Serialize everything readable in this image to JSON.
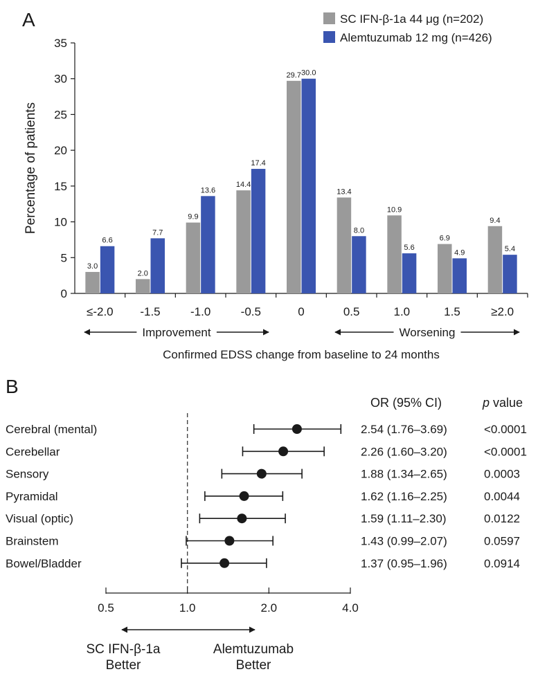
{
  "colors": {
    "sc_ifn": "#9a9a9a",
    "alemtuzumab": "#3a55b0",
    "ink": "#1a1a1a"
  },
  "panel_a": {
    "letter": "A"
  },
  "panel_b": {
    "letter": "B"
  },
  "chart_data": [
    {
      "type": "bar",
      "panel": "A",
      "ylabel": "Percentage of patients",
      "xlabel": "Confirmed EDSS change from baseline to 24 months",
      "ylim": [
        0,
        35
      ],
      "yticks": [
        0,
        5,
        10,
        15,
        20,
        25,
        30,
        35
      ],
      "grid": false,
      "legend_position": "top-right",
      "categories": [
        "≤-2.0",
        "-1.5",
        "-1.0",
        "-0.5",
        "0",
        "0.5",
        "1.0",
        "1.5",
        "≥2.0"
      ],
      "series": [
        {
          "name": "SC IFN-β-1a 44 μg (n=202)",
          "color": "#9a9a9a",
          "values": [
            3.0,
            2.0,
            9.9,
            14.4,
            29.7,
            13.4,
            10.9,
            6.9,
            9.4
          ],
          "labels": [
            "3.0",
            "2.0",
            "9.9",
            "14.4",
            "29.7",
            "13.4",
            "10.9",
            "6.9",
            "9.4"
          ]
        },
        {
          "name": "Alemtuzumab 12 mg (n=426)",
          "color": "#3a55b0",
          "values": [
            6.6,
            7.7,
            13.6,
            17.4,
            30.0,
            8.0,
            5.6,
            4.9,
            5.4
          ],
          "labels": [
            "6.6",
            "7.7",
            "13.6",
            "17.4",
            "30.0",
            "8.0",
            "5.6",
            "4.9",
            "5.4"
          ]
        }
      ],
      "annotations": {
        "left_region": "Improvement",
        "right_region": "Worsening"
      }
    },
    {
      "type": "scatter",
      "subtype": "forest",
      "panel": "B",
      "x_scale": "log",
      "xlim": [
        0.5,
        4.0
      ],
      "xticks": [
        0.5,
        1.0,
        2.0,
        4.0
      ],
      "xtick_labels": [
        "0.5",
        "1.0",
        "2.0",
        "4.0"
      ],
      "reference_line": 1.0,
      "column_headers": {
        "or": "OR (95% CI)",
        "p_italic": "p",
        "p_rest": " value"
      },
      "rows": [
        {
          "label": "Cerebral (mental)",
          "or": 2.54,
          "lo": 1.76,
          "hi": 3.69,
          "ci_text": "2.54 (1.76–3.69)",
          "p_text": "<0.0001"
        },
        {
          "label": "Cerebellar",
          "or": 2.26,
          "lo": 1.6,
          "hi": 3.2,
          "ci_text": "2.26 (1.60–3.20)",
          "p_text": "<0.0001"
        },
        {
          "label": "Sensory",
          "or": 1.88,
          "lo": 1.34,
          "hi": 2.65,
          "ci_text": "1.88 (1.34–2.65)",
          "p_text": "0.0003"
        },
        {
          "label": "Pyramidal",
          "or": 1.62,
          "lo": 1.16,
          "hi": 2.25,
          "ci_text": "1.62 (1.16–2.25)",
          "p_text": "0.0044"
        },
        {
          "label": "Visual (optic)",
          "or": 1.59,
          "lo": 1.11,
          "hi": 2.3,
          "ci_text": "1.59 (1.11–2.30)",
          "p_text": "0.0122"
        },
        {
          "label": "Brainstem",
          "or": 1.43,
          "lo": 0.99,
          "hi": 2.07,
          "ci_text": "1.43 (0.99–2.07)",
          "p_text": "0.0597"
        },
        {
          "label": "Bowel/Bladder",
          "or": 1.37,
          "lo": 0.95,
          "hi": 1.96,
          "ci_text": "1.37 (0.95–1.96)",
          "p_text": "0.0914"
        }
      ],
      "favors": {
        "left": [
          "SC IFN-β-1a",
          "Better"
        ],
        "right": [
          "Alemtuzumab",
          "Better"
        ]
      }
    }
  ]
}
